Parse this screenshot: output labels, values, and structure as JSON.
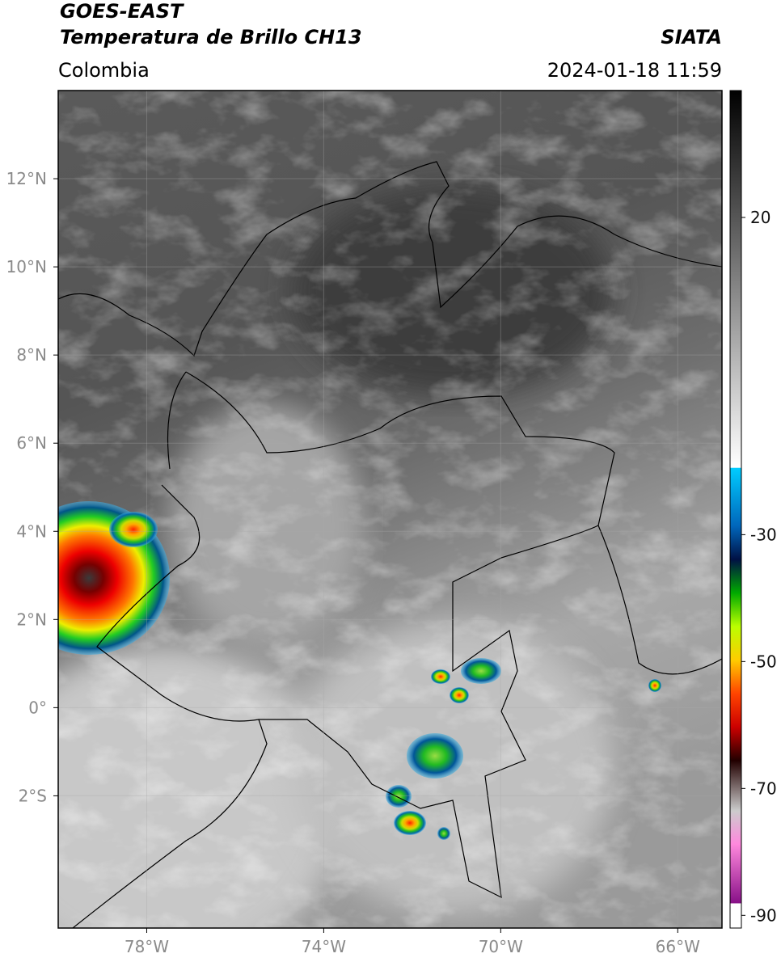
{
  "header": {
    "title": "GOES-EAST",
    "subtitle": "Temperatura de Brillo CH13",
    "source": "SIATA",
    "region": "Colombia",
    "datetime": "2024-01-18 11:59"
  },
  "map": {
    "xlim": [
      -80,
      -65
    ],
    "ylim": [
      -5,
      14
    ],
    "xticks": [
      {
        "value": -78,
        "label": "78°W"
      },
      {
        "value": -74,
        "label": "74°W"
      },
      {
        "value": -70,
        "label": "70°W"
      },
      {
        "value": -66,
        "label": "66°W"
      }
    ],
    "yticks": [
      {
        "value": 12,
        "label": "12°N"
      },
      {
        "value": 10,
        "label": "10°N"
      },
      {
        "value": 8,
        "label": "8°N"
      },
      {
        "value": 6,
        "label": "6°N"
      },
      {
        "value": 4,
        "label": "4°N"
      },
      {
        "value": 2,
        "label": "2°N"
      },
      {
        "value": 0,
        "label": "0°"
      },
      {
        "value": -2,
        "label": "2°S"
      }
    ]
  },
  "colorbar": {
    "lim": [
      -92,
      40
    ],
    "ticks": [
      20,
      -30,
      -50,
      -70,
      -90
    ]
  }
}
